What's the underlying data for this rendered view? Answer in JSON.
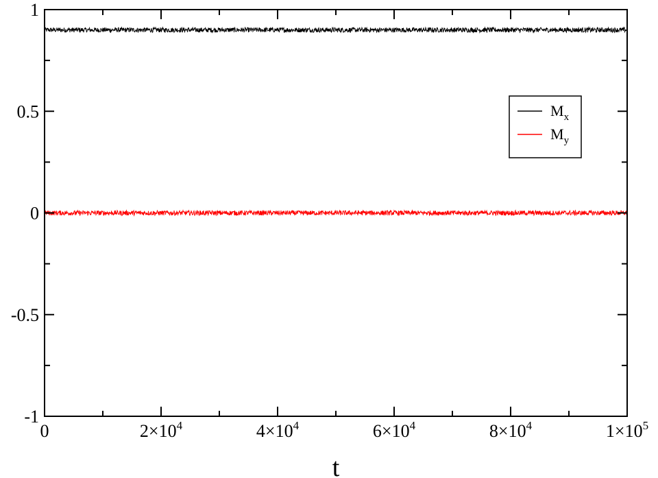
{
  "chart_data": {
    "type": "line",
    "title": "",
    "xlabel": "t",
    "ylabel": "",
    "xlim": [
      0,
      100000
    ],
    "ylim": [
      -1,
      1
    ],
    "x_ticks": [
      0,
      20000,
      40000,
      60000,
      80000,
      100000
    ],
    "x_tick_labels": [
      {
        "mantissa": "0",
        "exponent": ""
      },
      {
        "mantissa": "2×10",
        "exponent": "4"
      },
      {
        "mantissa": "4×10",
        "exponent": "4"
      },
      {
        "mantissa": "6×10",
        "exponent": "4"
      },
      {
        "mantissa": "8×10",
        "exponent": "4"
      },
      {
        "mantissa": "1×10",
        "exponent": "5"
      }
    ],
    "y_ticks": [
      -1,
      -0.5,
      0,
      0.5,
      1
    ],
    "y_tick_labels": [
      "-1",
      "-0.5",
      "0",
      "0.5",
      "1"
    ],
    "grid": false,
    "legend_position": "right",
    "series": [
      {
        "name": "M_x",
        "label_main": "M",
        "label_sub": "x",
        "color": "#000000",
        "mean": 0.9,
        "noise_amplitude": 0.012,
        "x_start": 0,
        "x_end": 100000
      },
      {
        "name": "M_y",
        "label_main": "M",
        "label_sub": "y",
        "color": "#ff0000",
        "mean": 0.0,
        "noise_amplitude": 0.012,
        "x_start": 0,
        "x_end": 100000
      }
    ]
  }
}
